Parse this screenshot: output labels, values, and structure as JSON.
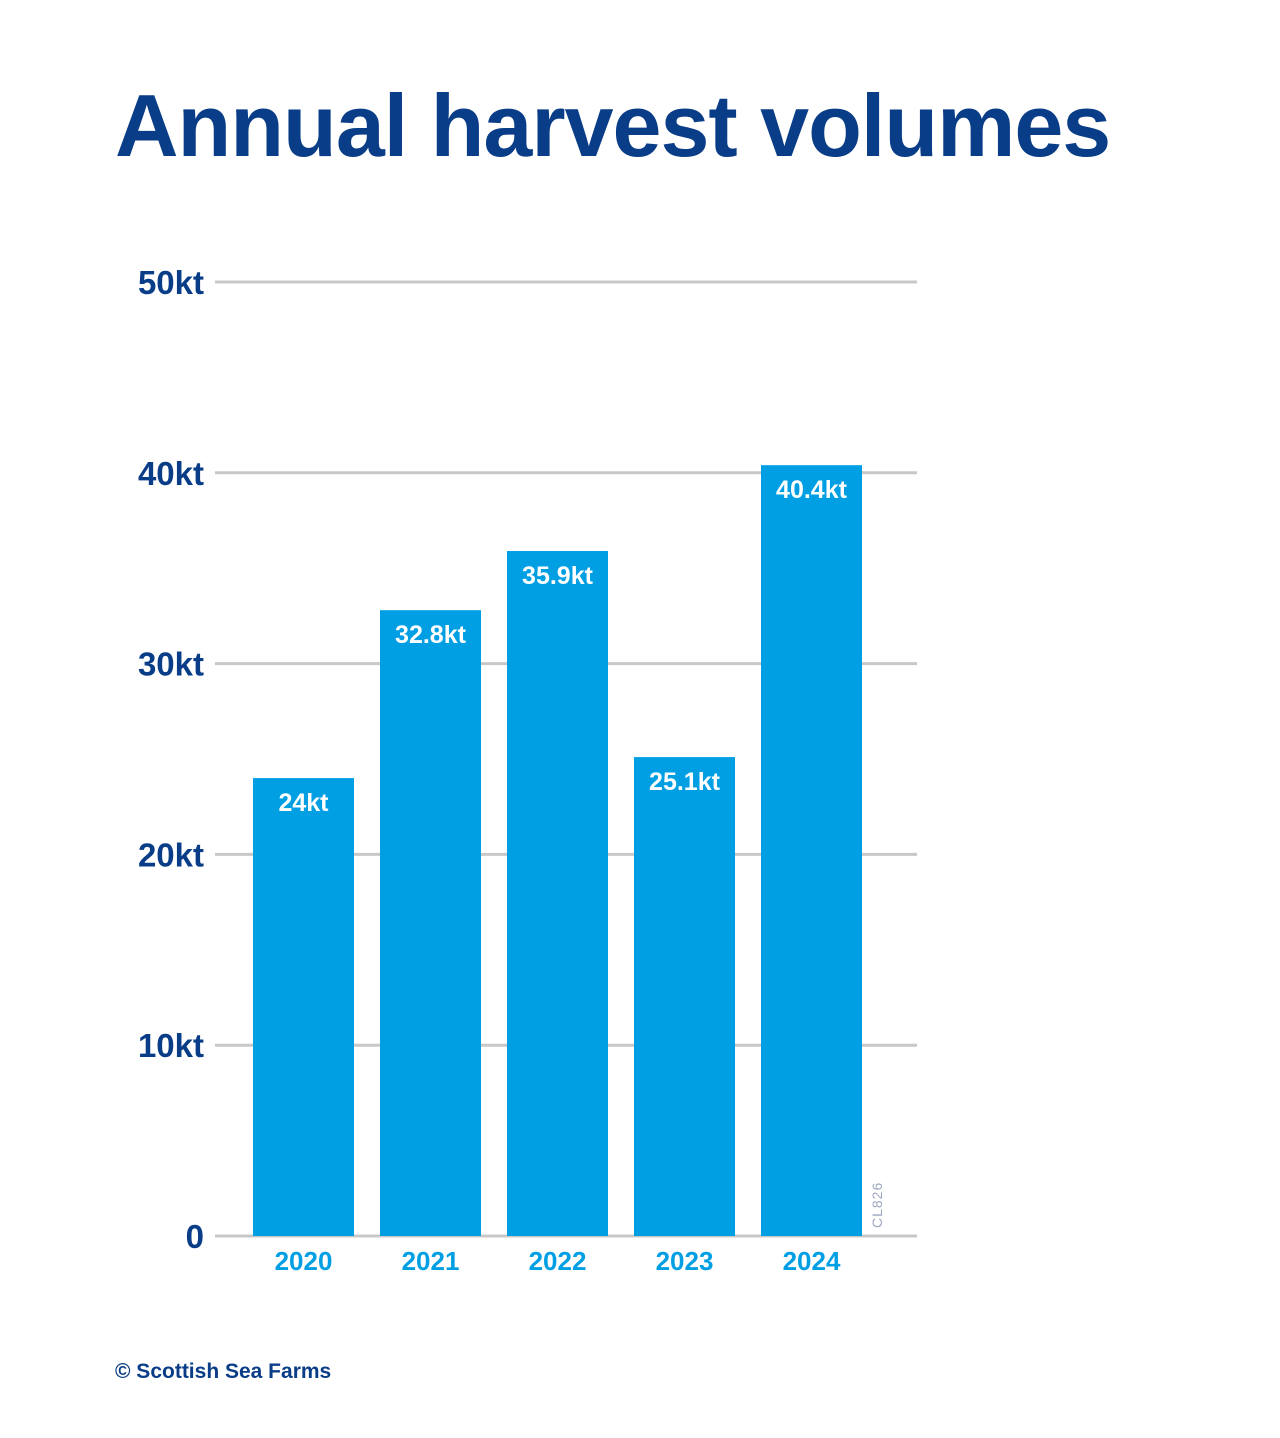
{
  "chart_data": {
    "type": "bar",
    "title": "Annual harvest volumes",
    "categories": [
      "2020",
      "2021",
      "2022",
      "2023",
      "2024"
    ],
    "values": [
      24,
      32.8,
      35.9,
      25.1,
      40.4
    ],
    "data_labels": [
      "24kt",
      "32.8kt",
      "35.9kt",
      "25.1kt",
      "40.4kt"
    ],
    "y_ticks": [
      0,
      10,
      20,
      30,
      40,
      50
    ],
    "y_tick_labels": [
      "0",
      "10kt",
      "20kt",
      "30kt",
      "40kt",
      "50kt"
    ],
    "ylim": [
      0,
      50
    ],
    "grid": true,
    "bar_color": "#009fe3",
    "gridline_color": "#c8c8c8"
  },
  "chart_code": "CL826",
  "copyright": "© Scottish Sea Farms",
  "colors": {
    "title": "#0a3d87",
    "axis_label": "#0a3d87",
    "category_label": "#009fe3",
    "data_label": "#ffffff"
  }
}
